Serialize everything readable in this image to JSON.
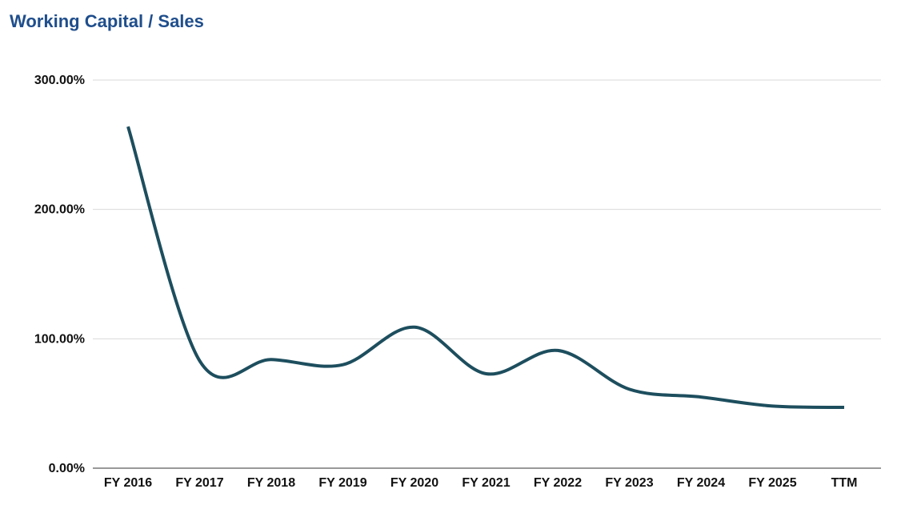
{
  "chart_data": {
    "type": "line",
    "title": "Working Capital / Sales",
    "xlabel": "",
    "ylabel": "",
    "categories": [
      "FY 2016",
      "FY 2017",
      "FY 2018",
      "FY 2019",
      "FY 2020",
      "FY 2021",
      "FY 2022",
      "FY 2023",
      "FY 2024",
      "FY 2025",
      "TTM"
    ],
    "series": [
      {
        "values": [
          264,
          83,
          84,
          80,
          109,
          73,
          91,
          61,
          55,
          48,
          47
        ]
      }
    ],
    "y_ticks": [
      "0.00%",
      "100.00%",
      "200.00%",
      "300.00%"
    ],
    "ylim": [
      0,
      300
    ],
    "grid": true,
    "legend": "none",
    "colors": {
      "line": "#1d4e5e",
      "grid": "#d9d9d9",
      "axis": "#333333",
      "title": "#1f4e8c"
    }
  }
}
